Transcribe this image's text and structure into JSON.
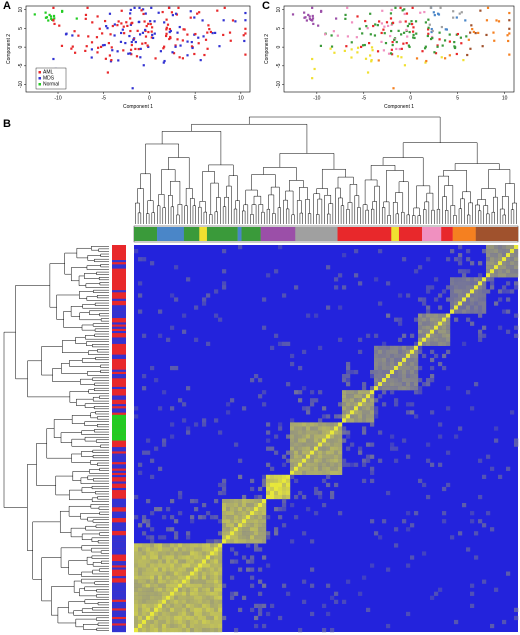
{
  "figure": {
    "panel_labels": [
      "A",
      "B",
      "C"
    ],
    "colors": {
      "aml": "#e8282b",
      "mds": "#3232d2",
      "normal": "#22cc22",
      "heatmap_low": "#2323dc",
      "heatmap_high": "#e8e83a"
    },
    "cluster_colors": [
      "#3a9a3a",
      "#4a86c8",
      "#f0e030",
      "#9b4fa8",
      "#a0a0a0",
      "#e8282b",
      "#f090c0",
      "#f58020",
      "#a0522d"
    ]
  },
  "chart_data": [
    {
      "panel": "A",
      "type": "scatter",
      "xlabel": "Component 1",
      "ylabel": "Component 2",
      "xticks": [
        -10,
        -5,
        0,
        5,
        10
      ],
      "yticks": [
        -10,
        -5,
        0,
        5,
        10
      ],
      "xlim": [
        -13.5,
        11
      ],
      "ylim": [
        -12,
        11
      ],
      "grid": false,
      "legend_position": "bottom-left",
      "series": [
        {
          "name": "AML",
          "color": "#e8282b",
          "count": 130
        },
        {
          "name": "MDS",
          "color": "#3232d2",
          "count": 80
        },
        {
          "name": "Normal",
          "color": "#22cc22",
          "count": 14
        }
      ]
    },
    {
      "panel": "C",
      "type": "scatter",
      "xlabel": "Component 1",
      "ylabel": "Component 2",
      "xticks": [
        -10,
        -5,
        0,
        5,
        10
      ],
      "yticks": [
        -10,
        -5,
        0,
        5,
        10
      ],
      "xlim": [
        -13.5,
        11
      ],
      "ylim": [
        -12,
        11
      ],
      "grid": false,
      "colored_by": "cluster"
    },
    {
      "panel": "B",
      "type": "heatmap",
      "dendrograms": [
        "top",
        "left"
      ],
      "color_low": "#2323dc",
      "color_high": "#e8e83a",
      "diagonal_blocks": [
        {
          "start": 0.0,
          "end": 0.23,
          "strength": 0.85
        },
        {
          "start": 0.23,
          "end": 0.345,
          "strength": 0.8
        },
        {
          "start": 0.345,
          "end": 0.41,
          "strength": 1.0
        },
        {
          "start": 0.41,
          "end": 0.54,
          "strength": 0.75
        },
        {
          "start": 0.54,
          "end": 0.625,
          "strength": 0.7
        },
        {
          "start": 0.625,
          "end": 0.74,
          "strength": 0.55
        },
        {
          "start": 0.74,
          "end": 0.82,
          "strength": 0.6
        },
        {
          "start": 0.82,
          "end": 0.92,
          "strength": 0.5
        },
        {
          "start": 0.92,
          "end": 1.0,
          "strength": 0.6
        }
      ]
    }
  ]
}
